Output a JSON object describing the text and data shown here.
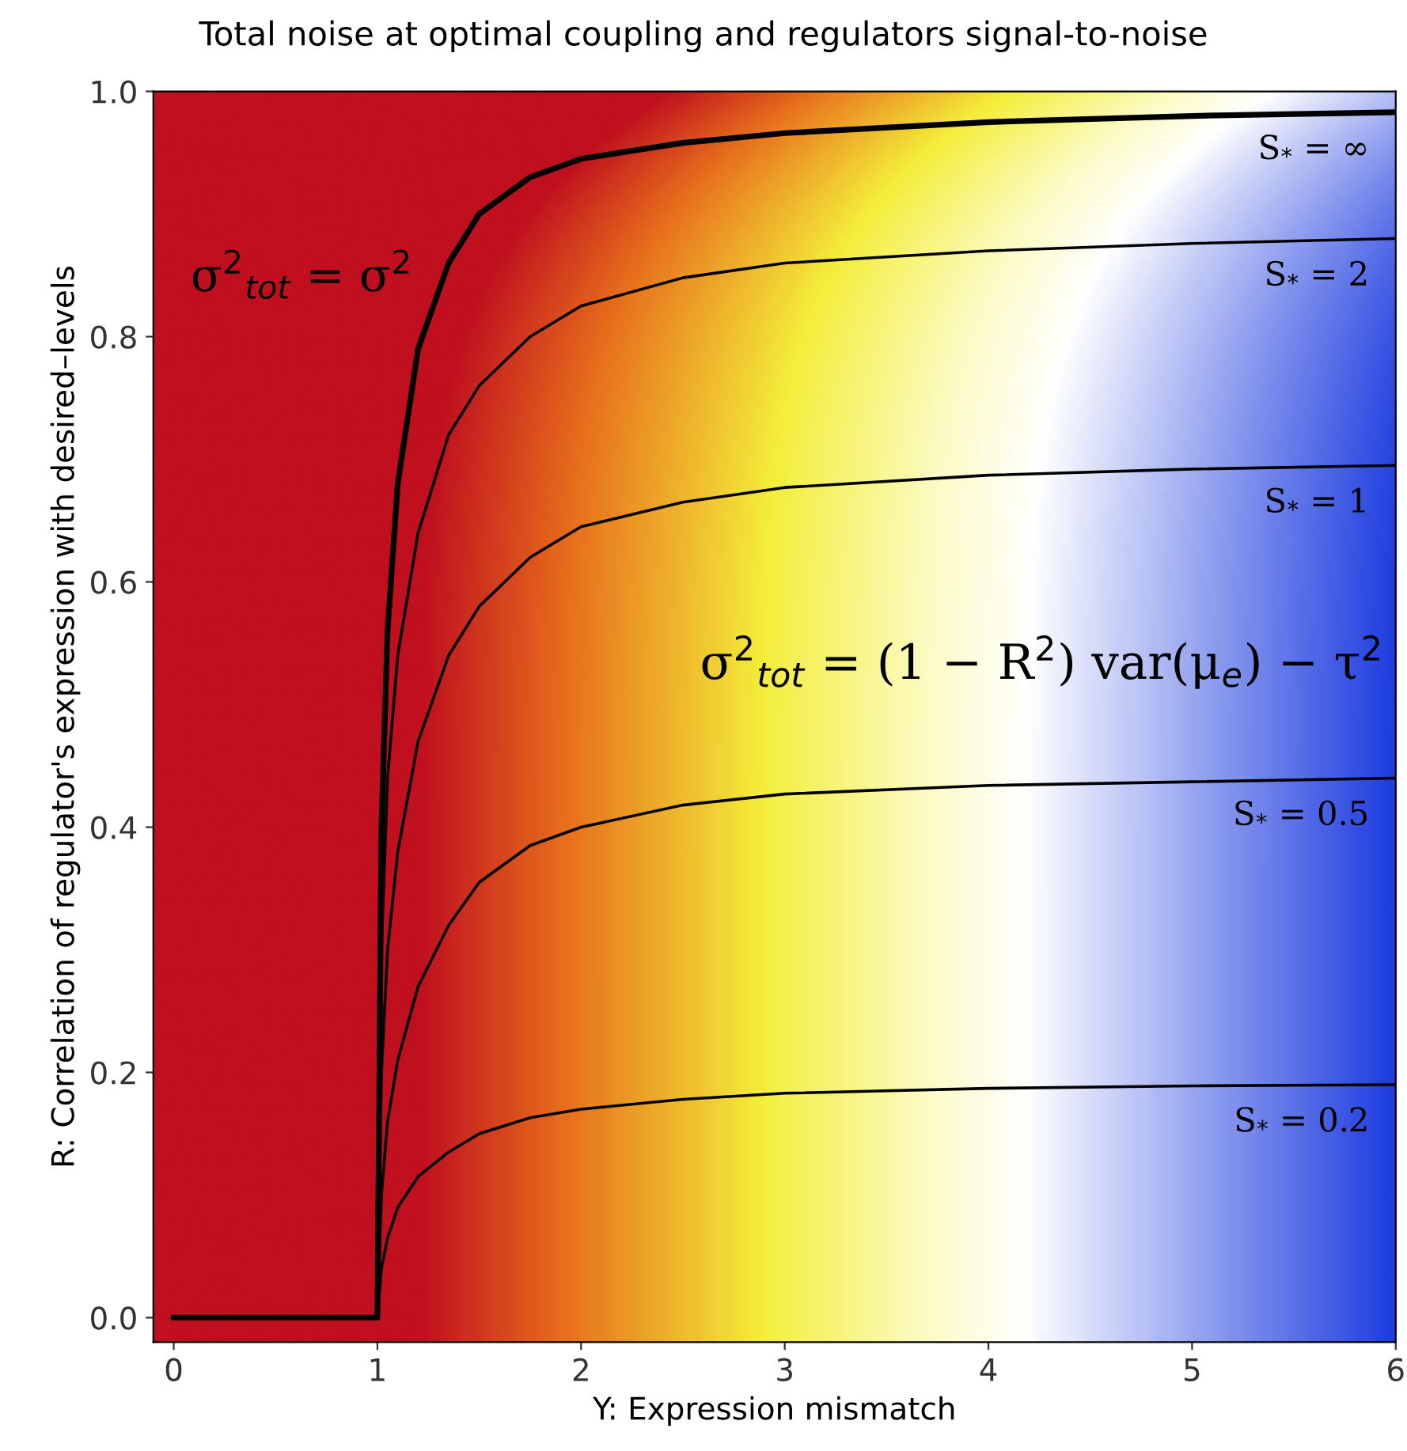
{
  "chart_data": {
    "type": "line",
    "title": "Total noise at optimal coupling and regulators signal-to-noise",
    "xlabel": "Y: Expression mismatch",
    "ylabel": "R: Correlation of regulator's expression with desired–levels",
    "xlim": [
      -0.1,
      6
    ],
    "ylim": [
      -0.02,
      1.0
    ],
    "xticks": [
      0,
      1,
      2,
      3,
      4,
      5,
      6
    ],
    "yticks": [
      {
        "value": 0,
        "label": "0.0"
      },
      {
        "value": 0.2,
        "label": "0.2"
      },
      {
        "value": 0.4,
        "label": "0.4"
      },
      {
        "value": 0.6,
        "label": "0.6"
      },
      {
        "value": 0.8,
        "label": "0.8"
      },
      {
        "value": 1.0,
        "label": "1.0"
      }
    ],
    "grid": false,
    "legend": false,
    "marker": "none",
    "line_style": "solid",
    "series": [
      {
        "name": "S$_{*}$ = ∞",
        "color": "#000000",
        "x": [
          0,
          1,
          1.02,
          1.05,
          1.1,
          1.2,
          1.35,
          1.5,
          1.75,
          2,
          2.5,
          3,
          4,
          5,
          6
        ],
        "values": [
          0,
          0,
          0.4,
          0.56,
          0.68,
          0.79,
          0.86,
          0.9,
          0.93,
          0.945,
          0.958,
          0.966,
          0.975,
          0.98,
          0.983
        ]
      },
      {
        "name": "S$_{*}$ = 2",
        "color": "#000000",
        "x": [
          1,
          1.02,
          1.05,
          1.1,
          1.2,
          1.35,
          1.5,
          1.75,
          2,
          2.5,
          3,
          4,
          5,
          6
        ],
        "values": [
          0,
          0.3,
          0.44,
          0.54,
          0.64,
          0.72,
          0.76,
          0.8,
          0.825,
          0.848,
          0.86,
          0.87,
          0.876,
          0.88
        ]
      },
      {
        "name": "S$_{*}$ = 1",
        "color": "#000000",
        "x": [
          1,
          1.02,
          1.05,
          1.1,
          1.2,
          1.35,
          1.5,
          1.75,
          2,
          2.5,
          3,
          4,
          5,
          6
        ],
        "values": [
          0,
          0.2,
          0.3,
          0.38,
          0.47,
          0.54,
          0.58,
          0.62,
          0.645,
          0.665,
          0.677,
          0.687,
          0.692,
          0.695
        ]
      },
      {
        "name": "S$_{*}$ = 0.5",
        "color": "#000000",
        "x": [
          1,
          1.02,
          1.05,
          1.1,
          1.2,
          1.35,
          1.5,
          1.75,
          2,
          2.5,
          3,
          4,
          5,
          6
        ],
        "values": [
          0,
          0.1,
          0.16,
          0.21,
          0.27,
          0.32,
          0.355,
          0.385,
          0.4,
          0.418,
          0.427,
          0.434,
          0.437,
          0.44
        ]
      },
      {
        "name": "S$_{*}$ = 0.2",
        "color": "#000000",
        "x": [
          1,
          1.02,
          1.05,
          1.1,
          1.2,
          1.35,
          1.5,
          1.75,
          2,
          2.5,
          3,
          4,
          5,
          6
        ],
        "values": [
          0,
          0.04,
          0.065,
          0.09,
          0.115,
          0.135,
          0.15,
          0.163,
          0.17,
          0.178,
          0.183,
          0.187,
          0.189,
          0.19
        ]
      }
    ],
    "annotations": [
      "σ$^{2}$$_{tot}$ = σ$^{2}$",
      "σ$^{2}$$_{tot}$ = (1 − R$^{2}$) var(μ$_{e}$) − τ$^{2}$"
    ]
  }
}
